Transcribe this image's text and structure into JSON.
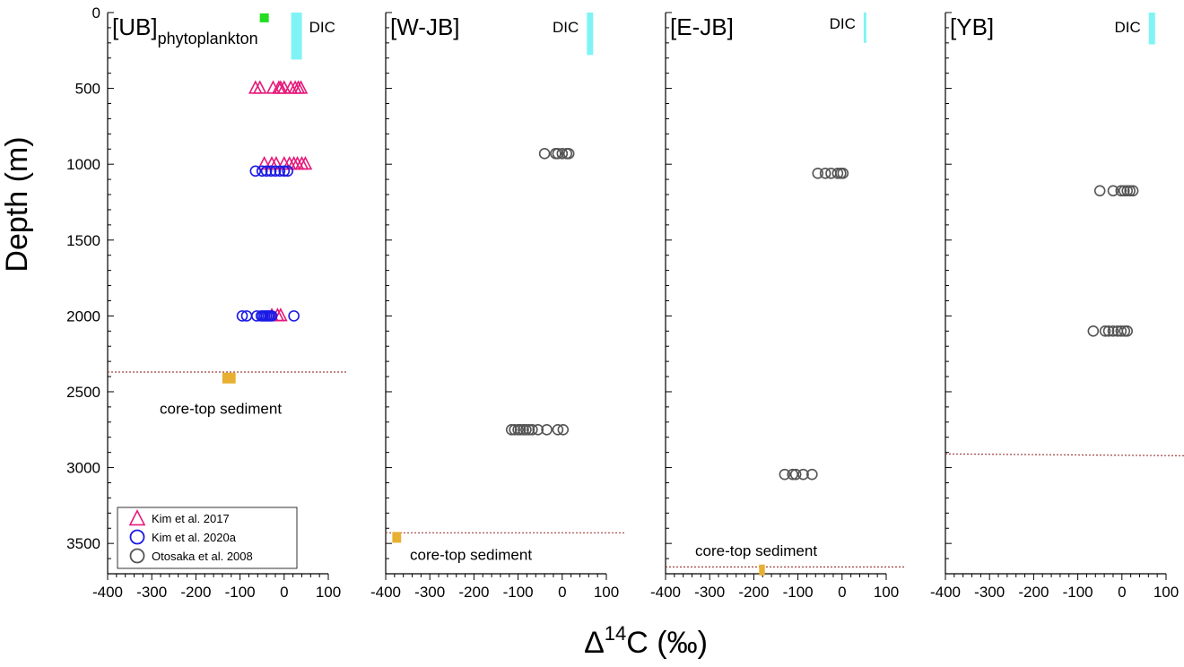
{
  "chart_data": {
    "type": "scatter",
    "xlabel": "Δ14C (‰)",
    "xlabel_parts": {
      "delta": "Δ",
      "superscript": "14",
      "rest": "C (‰)"
    },
    "ylabel": "Depth (m)",
    "xlim": [
      -400,
      100
    ],
    "ylim": [
      3700,
      0
    ],
    "y_inverted": true,
    "xticks": [
      -400,
      -300,
      -200,
      -100,
      0,
      100
    ],
    "yticks": [
      0,
      500,
      1000,
      1500,
      2000,
      2500,
      3000,
      3500
    ],
    "grid": false,
    "legend_position": "bottom-left of first panel",
    "legend": [
      {
        "name": "Kim et al. 2017",
        "marker": "triangle",
        "color": "#e6197a"
      },
      {
        "name": "Kim et al. 2020a",
        "marker": "circle",
        "color": "#1a1ae6"
      },
      {
        "name": "Otosaka et al. 2008",
        "marker": "circle",
        "color": "#555555"
      }
    ],
    "colors": {
      "kim2017": "#e6197a",
      "kim2020a": "#1a1ae6",
      "otosaka2008": "#555555",
      "dic": "#80f4f4",
      "phytoplankton": "#22dd22",
      "sediment": "#e8b030",
      "seafloor_line": "#a04040"
    },
    "panels": [
      {
        "title_main": "[UB]",
        "title_sub": "phytoplankton",
        "dic_label": "DIC",
        "dic": {
          "x": 28,
          "depth_range": [
            0,
            310
          ]
        },
        "phytoplankton": {
          "x": -45,
          "depth": 35
        },
        "sediment": {
          "label": "core-top sediment",
          "x_range": [
            -140,
            -110
          ],
          "depth": 2410
        },
        "seafloor_depth": 2370,
        "series": [
          {
            "name": "Kim et al. 2017",
            "marker": "triangle",
            "color": "#e6197a",
            "points": [
              [
                -65,
                500
              ],
              [
                -55,
                500
              ],
              [
                -25,
                500
              ],
              [
                -12,
                500
              ],
              [
                -8,
                500
              ],
              [
                0,
                500
              ],
              [
                15,
                500
              ],
              [
                25,
                500
              ],
              [
                32,
                500
              ],
              [
                38,
                500
              ],
              [
                -45,
                1000
              ],
              [
                -28,
                1000
              ],
              [
                -18,
                1000
              ],
              [
                0,
                1000
              ],
              [
                12,
                1000
              ],
              [
                22,
                1000
              ],
              [
                30,
                1000
              ],
              [
                40,
                1000
              ],
              [
                48,
                1000
              ],
              [
                -28,
                2000
              ],
              [
                -15,
                2000
              ],
              [
                -8,
                2000
              ]
            ]
          },
          {
            "name": "Kim et al. 2020a",
            "marker": "circle",
            "color": "#1a1ae6",
            "points": [
              [
                -65,
                1045
              ],
              [
                -50,
                1045
              ],
              [
                -40,
                1045
              ],
              [
                -30,
                1045
              ],
              [
                -20,
                1045
              ],
              [
                -10,
                1045
              ],
              [
                0,
                1045
              ],
              [
                8,
                1045
              ],
              [
                -95,
                2000
              ],
              [
                -85,
                2000
              ],
              [
                -62,
                2000
              ],
              [
                -52,
                2000
              ],
              [
                -48,
                2000
              ],
              [
                -44,
                2000
              ],
              [
                -40,
                2000
              ],
              [
                -36,
                2000
              ],
              [
                -32,
                2000
              ],
              [
                -28,
                2000
              ],
              [
                22,
                2000
              ]
            ]
          }
        ]
      },
      {
        "title_main": "[W-JB]",
        "title_sub": "",
        "dic_label": "DIC",
        "dic": {
          "x": 62,
          "depth_range": [
            0,
            280
          ]
        },
        "sediment": {
          "label": "core-top sediment",
          "x_range": [
            -385,
            -365
          ],
          "depth": 3460
        },
        "seafloor_depth": 3430,
        "series": [
          {
            "name": "Otosaka et al. 2008",
            "marker": "circle",
            "color": "#555555",
            "points": [
              [
                -40,
                930
              ],
              [
                -15,
                930
              ],
              [
                -10,
                930
              ],
              [
                0,
                930
              ],
              [
                10,
                930
              ],
              [
                15,
                930
              ],
              [
                -115,
                2750
              ],
              [
                -108,
                2750
              ],
              [
                -100,
                2750
              ],
              [
                -95,
                2750
              ],
              [
                -88,
                2750
              ],
              [
                -82,
                2750
              ],
              [
                -75,
                2750
              ],
              [
                -68,
                2750
              ],
              [
                -55,
                2750
              ],
              [
                -35,
                2750
              ],
              [
                -10,
                2750
              ],
              [
                2,
                2750
              ]
            ]
          }
        ]
      },
      {
        "title_main": "[E-JB]",
        "title_sub": "",
        "dic_label": "DIC",
        "dic": {
          "x": 55,
          "depth_range": [
            0,
            200
          ]
        },
        "sediment": {
          "label": "core-top sediment",
          "x_range": [
            -188,
            -175
          ],
          "depth": 3675
        },
        "seafloor_depth": 3655,
        "series": [
          {
            "name": "Otosaka et al. 2008",
            "marker": "circle",
            "color": "#555555",
            "points": [
              [
                -55,
                1060
              ],
              [
                -38,
                1060
              ],
              [
                -25,
                1060
              ],
              [
                -10,
                1060
              ],
              [
                -3,
                1060
              ],
              [
                2,
                1060
              ],
              [
                -130,
                3045
              ],
              [
                -112,
                3045
              ],
              [
                -105,
                3045
              ],
              [
                -88,
                3045
              ],
              [
                -68,
                3045
              ]
            ]
          }
        ]
      },
      {
        "title_main": "[YB]",
        "title_sub": "",
        "dic_label": "DIC",
        "dic": {
          "x": 67,
          "depth_range": [
            0,
            210
          ]
        },
        "seafloor_depth": 2910,
        "series": [
          {
            "name": "Otosaka et al. 2008",
            "marker": "circle",
            "color": "#555555",
            "points": [
              [
                -50,
                1175
              ],
              [
                -20,
                1175
              ],
              [
                -2,
                1175
              ],
              [
                5,
                1175
              ],
              [
                12,
                1175
              ],
              [
                18,
                1175
              ],
              [
                25,
                1175
              ],
              [
                -65,
                2100
              ],
              [
                -38,
                2100
              ],
              [
                -30,
                2100
              ],
              [
                -20,
                2100
              ],
              [
                -10,
                2100
              ],
              [
                -2,
                2100
              ],
              [
                6,
                2100
              ],
              [
                12,
                2100
              ]
            ]
          }
        ]
      }
    ]
  }
}
